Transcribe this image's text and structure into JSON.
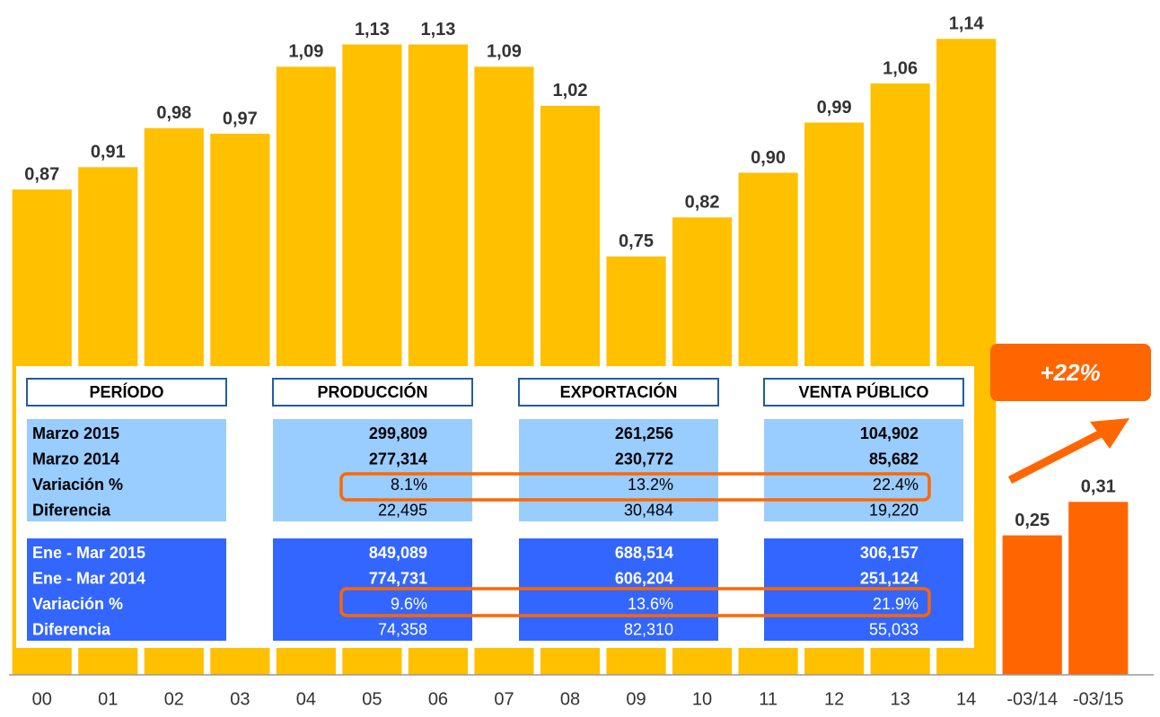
{
  "chart_data": {
    "type": "bar",
    "categories": [
      "00",
      "01",
      "02",
      "03",
      "04",
      "05",
      "06",
      "07",
      "08",
      "09",
      "10",
      "11",
      "12",
      "13",
      "14",
      "-03/14",
      "-03/15"
    ],
    "values": [
      0.87,
      0.91,
      0.98,
      0.97,
      1.09,
      1.13,
      1.13,
      1.09,
      1.02,
      0.75,
      0.82,
      0.9,
      0.99,
      1.06,
      1.14,
      0.25,
      0.31
    ],
    "value_labels": [
      "0,87",
      "0,91",
      "0,98",
      "0,97",
      "1,09",
      "1,13",
      "1,13",
      "1,09",
      "1,02",
      "0,75",
      "0,82",
      "0,90",
      "0,99",
      "1,06",
      "1,14",
      "0,25",
      "0,31"
    ],
    "colors": [
      "#FFC000",
      "#FFC000",
      "#FFC000",
      "#FFC000",
      "#FFC000",
      "#FFC000",
      "#FFC000",
      "#FFC000",
      "#FFC000",
      "#FFC000",
      "#FFC000",
      "#FFC000",
      "#FFC000",
      "#FFC000",
      "#FFC000",
      "#FF6600",
      "#FF6600"
    ],
    "ylim": [
      0,
      1.2
    ]
  },
  "badge": "+22%",
  "table": {
    "headers": [
      "PERÍODO",
      "PRODUCCIÓN",
      "EXPORTACIÓN",
      "VENTA PÚBLICO"
    ],
    "groups": [
      {
        "rows": [
          [
            "Marzo 2015",
            "299,809",
            "261,256",
            "104,902"
          ],
          [
            "Marzo 2014",
            "277,314",
            "230,772",
            "85,682"
          ],
          [
            "Variación %",
            "8.1%",
            "13.2%",
            "22.4%"
          ],
          [
            "Diferencia",
            "22,495",
            "30,484",
            "19,220"
          ]
        ]
      },
      {
        "rows": [
          [
            "Ene - Mar 2015",
            "849,089",
            "688,514",
            "306,157"
          ],
          [
            "Ene - Mar 2014",
            "774,731",
            "606,204",
            "251,124"
          ],
          [
            "Variación %",
            "9.6%",
            "13.6%",
            "21.9%"
          ],
          [
            "Diferencia",
            "74,358",
            "82,310",
            "55,033"
          ]
        ]
      }
    ]
  }
}
